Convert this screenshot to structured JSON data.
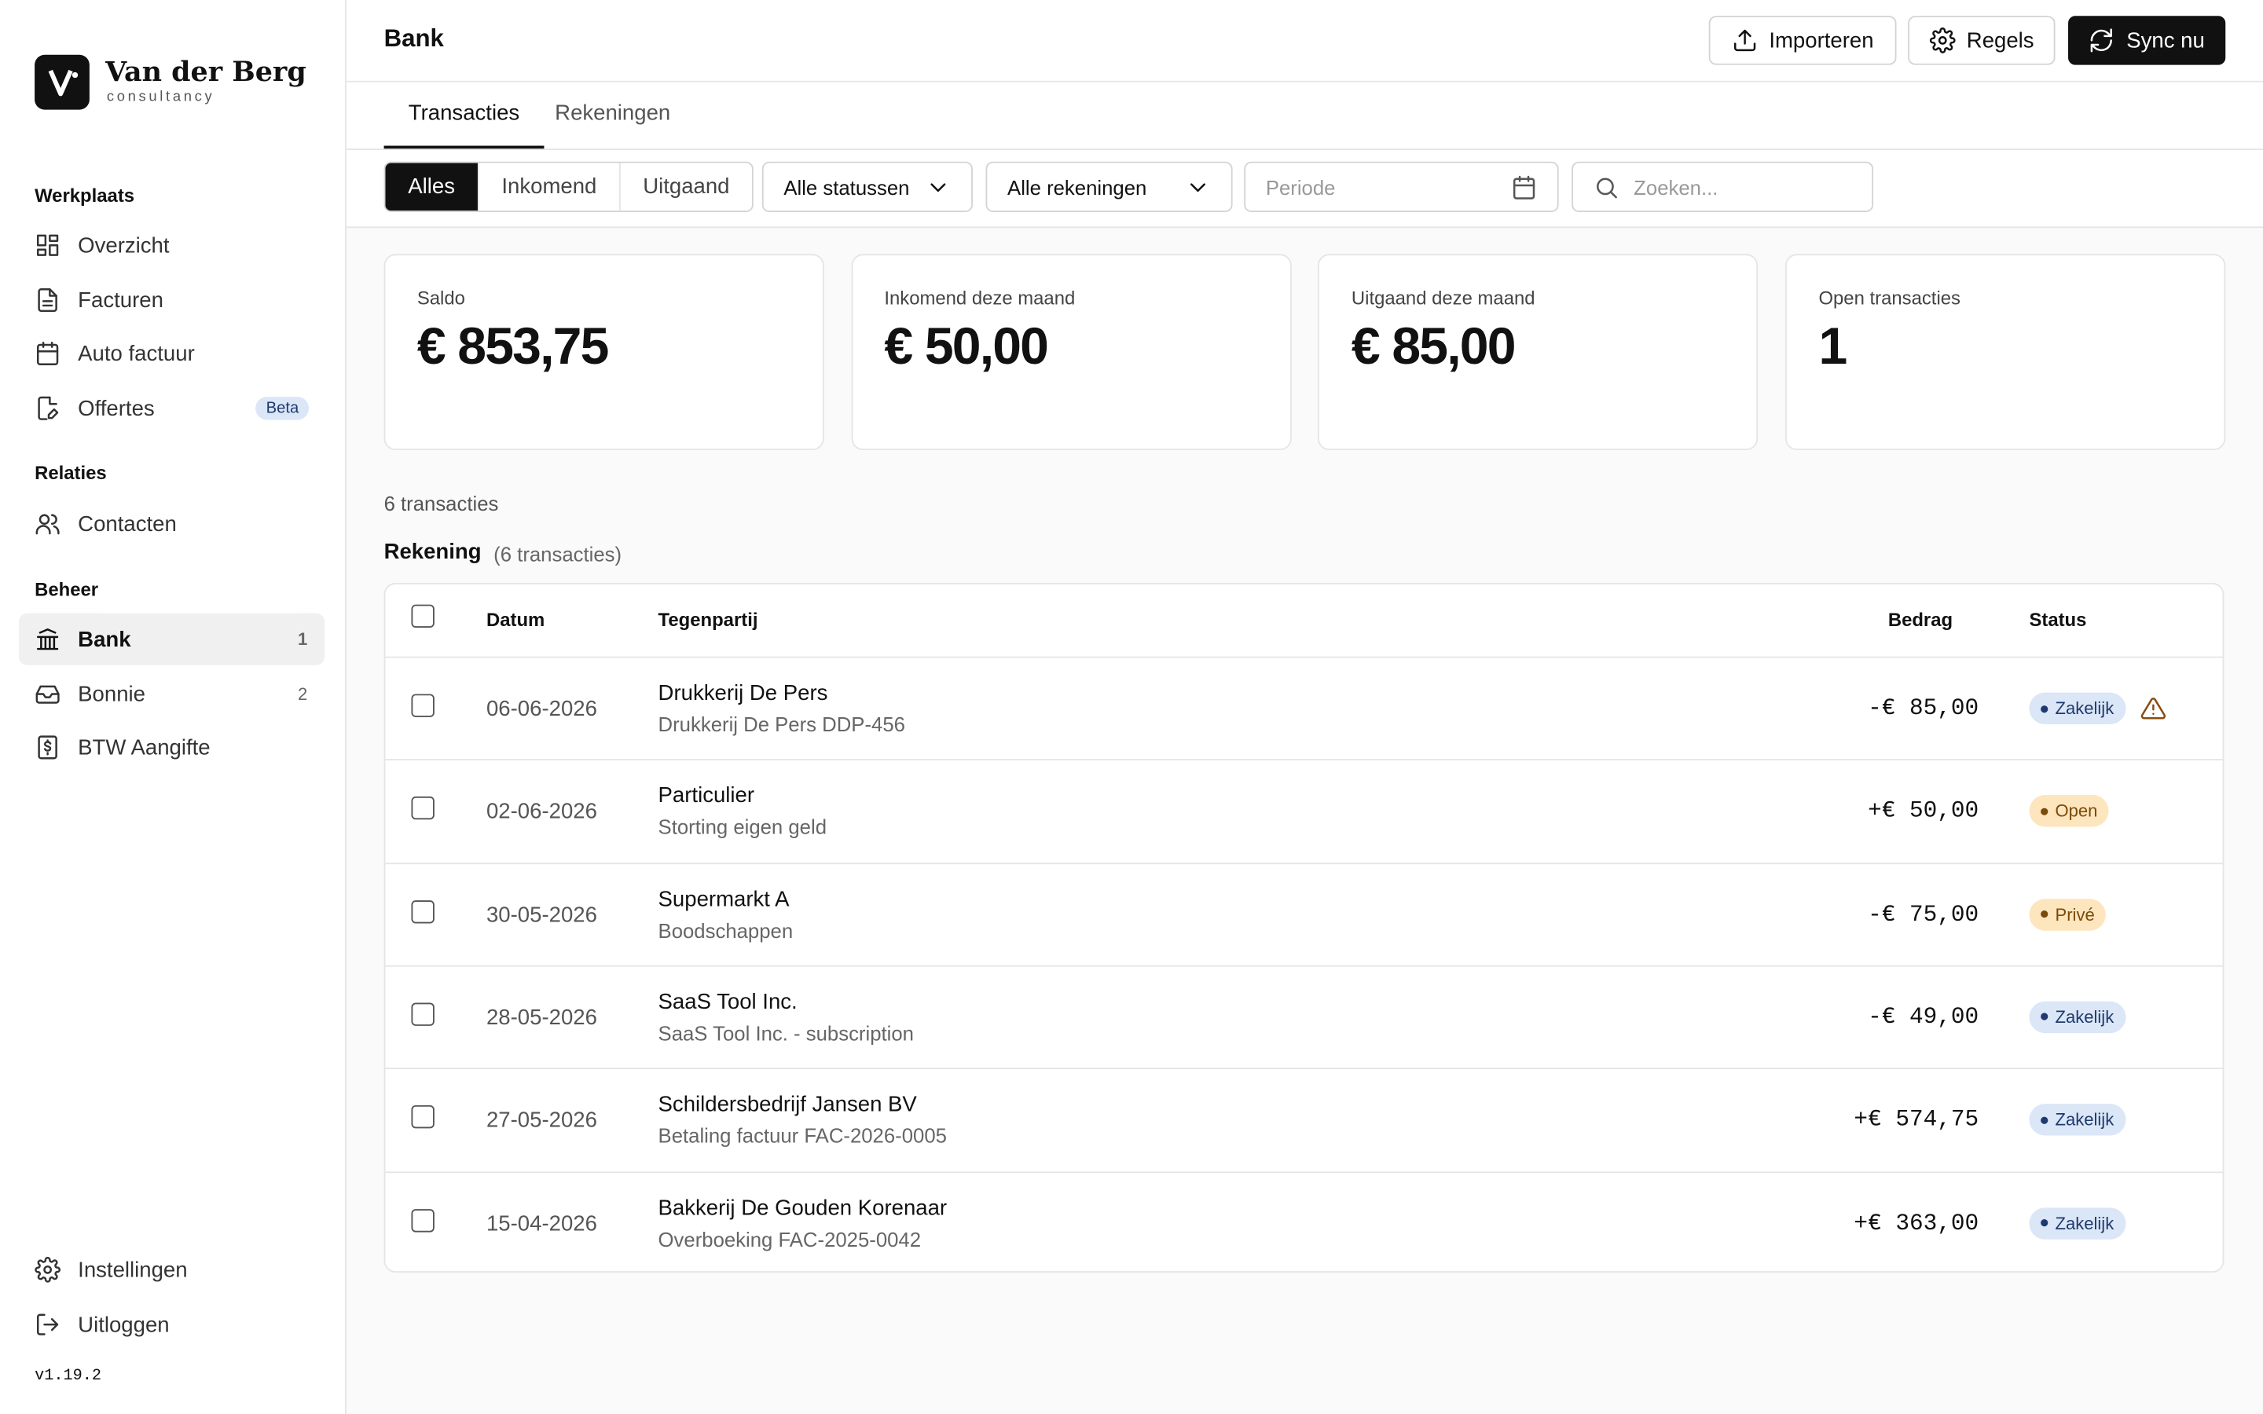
{
  "sidebar": {
    "brand": {
      "name": "Van der Berg",
      "tagline": "consultancy"
    },
    "sections": [
      {
        "title": "Werkplaats",
        "items": [
          {
            "label": "Overzicht"
          },
          {
            "label": "Facturen"
          },
          {
            "label": "Auto factuur"
          },
          {
            "label": "Offertes",
            "badge": "Beta"
          }
        ]
      },
      {
        "title": "Relaties",
        "items": [
          {
            "label": "Contacten"
          }
        ]
      },
      {
        "title": "Beheer",
        "items": [
          {
            "label": "Bank",
            "count": 1,
            "active": true
          },
          {
            "label": "Bonnie",
            "count": 2
          },
          {
            "label": "BTW Aangifte"
          }
        ]
      }
    ],
    "footer": [
      {
        "label": "Instellingen"
      },
      {
        "label": "Uitloggen"
      }
    ],
    "version": "v1.19.2"
  },
  "header": {
    "title": "Bank",
    "buttons": [
      "Importeren",
      "Regels",
      "Sync nu"
    ]
  },
  "tabs": {
    "items": [
      "Transacties",
      "Rekeningen"
    ],
    "active": 0
  },
  "filters": {
    "segments": [
      "Alles",
      "Inkomend",
      "Uitgaand"
    ],
    "active": 0,
    "status": "Alle statussen",
    "accounts": "Alle rekeningen",
    "period": "Periode",
    "search": "Zoeken..."
  },
  "stats": [
    {
      "label": "Saldo",
      "value": "€ 853,75"
    },
    {
      "label": "Inkomend deze maand",
      "value": "€ 50,00"
    },
    {
      "label": "Uitgaand deze maand",
      "value": "€ 85,00"
    },
    {
      "label": "Open transacties",
      "value": "1"
    }
  ],
  "count": "6 transacties",
  "group": {
    "title": "Rekening",
    "count": "(6 transacties)"
  },
  "table": {
    "columns": [
      "Datum",
      "Tegenpartij",
      "Bedrag",
      "Status"
    ],
    "rows": [
      {
        "date": "06-06-2026",
        "name": "Drukkerij De Pers",
        "description": "Drukkerij De Pers DDP-456",
        "amount": "-€ 85,00",
        "status": "Zakelijk",
        "warning": true
      },
      {
        "date": "02-06-2026",
        "name": "Particulier",
        "description": "Storting eigen geld",
        "amount": "+€ 50,00",
        "status": "Open"
      },
      {
        "date": "30-05-2026",
        "name": "Supermarkt A",
        "description": "Boodschappen",
        "amount": "-€ 75,00",
        "status": "Privé"
      },
      {
        "date": "28-05-2026",
        "name": "SaaS Tool Inc.",
        "description": "SaaS Tool Inc. - subscription",
        "amount": "-€ 49,00",
        "status": "Zakelijk"
      },
      {
        "date": "27-05-2026",
        "name": "Schildersbedrijf Jansen BV",
        "description": "Betaling factuur FAC-2026-0005",
        "amount": "+€ 574,75",
        "status": "Zakelijk"
      },
      {
        "date": "15-04-2026",
        "name": "Bakkerij De Gouden Korenaar",
        "description": "Overboeking FAC-2025-0042",
        "amount": "+€ 363,00",
        "status": "Zakelijk"
      }
    ]
  }
}
